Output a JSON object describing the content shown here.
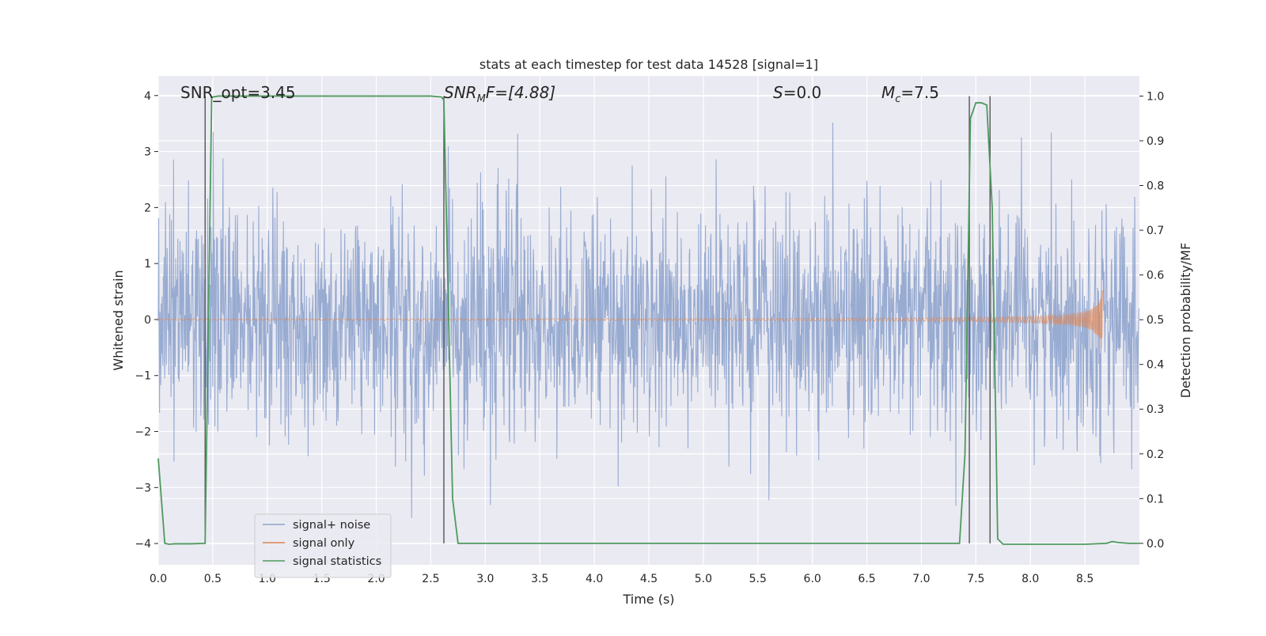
{
  "chart_data": {
    "type": "line",
    "title": "stats at each timestep for test data 14528 [signal=1]",
    "xlabel": "Time (s)",
    "ylabel_left": "Whitened strain",
    "ylabel_right": "Detection probability/MF",
    "xlim": [
      0.0,
      9.0
    ],
    "ylim_left": [
      -4.38,
      4.35
    ],
    "ylim_right": [
      -0.048,
      1.045
    ],
    "xticks": [
      "0.0",
      "0.5",
      "1.0",
      "1.5",
      "2.0",
      "2.5",
      "3.0",
      "3.5",
      "4.0",
      "4.5",
      "5.0",
      "5.5",
      "6.0",
      "6.5",
      "7.0",
      "7.5",
      "8.0",
      "8.5"
    ],
    "yticks_left": [
      "−4",
      "−3",
      "−2",
      "−1",
      "0",
      "1",
      "2",
      "3",
      "4"
    ],
    "yticks_right": [
      "0.0",
      "0.1",
      "0.2",
      "0.3",
      "0.4",
      "0.5",
      "0.6",
      "0.7",
      "0.8",
      "0.9",
      "1.0"
    ],
    "grid": true,
    "legend_position": "lower-left",
    "annotations": {
      "snr_opt": "SNR_opt=3.45",
      "snr_mf_main": "SNR",
      "snr_mf_sub": "M",
      "snr_mf_rest": "F=[4.88]",
      "s_main": "S",
      "s_rest": "=0.0",
      "mc_main": "M",
      "mc_sub": "c",
      "mc_rest": "=7.5"
    },
    "series": [
      {
        "name": "signal+ noise",
        "color": "#8fa4cd",
        "kind": "noise",
        "axis": "left",
        "sample_rate_hz": 256,
        "spread_std": 1.0,
        "peak_max": 3.8,
        "peak_min": -3.8
      },
      {
        "name": "signal only",
        "color": "#dd8452",
        "kind": "chirp",
        "axis": "left",
        "merger_time": 8.66,
        "amp_at_start": 0.01,
        "amp_at_merger": 0.55,
        "cutoff_time": 8.68
      },
      {
        "name": "signal statistics",
        "color": "#4e9a5e",
        "kind": "line",
        "axis": "right",
        "x": [
          0.0,
          0.06,
          0.1,
          0.15,
          0.2,
          0.3,
          0.43,
          0.49,
          0.5,
          0.55,
          0.6,
          1.0,
          1.5,
          2.0,
          2.5,
          2.6,
          2.62,
          2.7,
          2.75,
          2.8,
          3.0,
          4.0,
          5.0,
          6.0,
          7.0,
          7.35,
          7.4,
          7.45,
          7.5,
          7.55,
          7.6,
          7.65,
          7.7,
          7.75,
          7.8,
          8.0,
          8.5,
          8.7,
          8.75,
          8.8,
          8.9,
          9.0
        ],
        "y": [
          0.19,
          0.0,
          -0.002,
          -0.001,
          -0.001,
          -0.001,
          0.0,
          0.995,
          0.998,
          1.0,
          1.0,
          1.0,
          1.0,
          1.0,
          1.0,
          0.998,
          0.99,
          0.1,
          0.0,
          0.0,
          0.0,
          0.0,
          0.0,
          0.0,
          0.0,
          0.0,
          0.2,
          0.95,
          0.985,
          0.985,
          0.98,
          0.75,
          0.01,
          -0.002,
          -0.002,
          -0.002,
          -0.002,
          0.0,
          0.004,
          0.002,
          0.0,
          0.0
        ]
      }
    ],
    "vlines": [
      {
        "x": 0.43,
        "ymin": 0.0,
        "ymax": 1.0,
        "color": "#555555"
      },
      {
        "x": 2.62,
        "ymin": 0.0,
        "ymax": 1.0,
        "color": "#555555"
      },
      {
        "x": 7.44,
        "ymin": 0.0,
        "ymax": 1.0,
        "color": "#555555"
      },
      {
        "x": 7.63,
        "ymin": 0.0,
        "ymax": 1.0,
        "color": "#555555"
      }
    ]
  }
}
